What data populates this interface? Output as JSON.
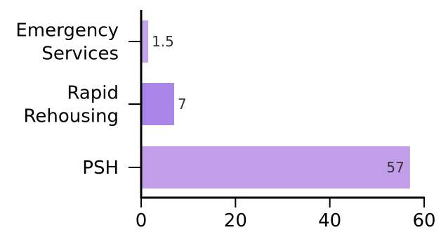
{
  "chart_data": {
    "type": "bar",
    "orientation": "horizontal",
    "categories": [
      "Emergency Services",
      "Rapid Rehousing",
      "PSH"
    ],
    "category_lines": [
      [
        "Emergency",
        "Services"
      ],
      [
        "Rapid",
        "Rehousing"
      ],
      [
        "PSH"
      ]
    ],
    "values": [
      1.5,
      7,
      57
    ],
    "value_labels": [
      "1.5",
      "7",
      "57"
    ],
    "bar_colors": [
      "#c4a4ee",
      "#aa85e8",
      "#c29eea"
    ],
    "title": "",
    "xlabel": "",
    "ylabel": "",
    "xlim": [
      0,
      60
    ],
    "xticks": [
      0,
      20,
      40,
      60
    ],
    "xtick_labels": [
      "0",
      "20",
      "40",
      "60"
    ],
    "grid": false,
    "legend": "none"
  }
}
